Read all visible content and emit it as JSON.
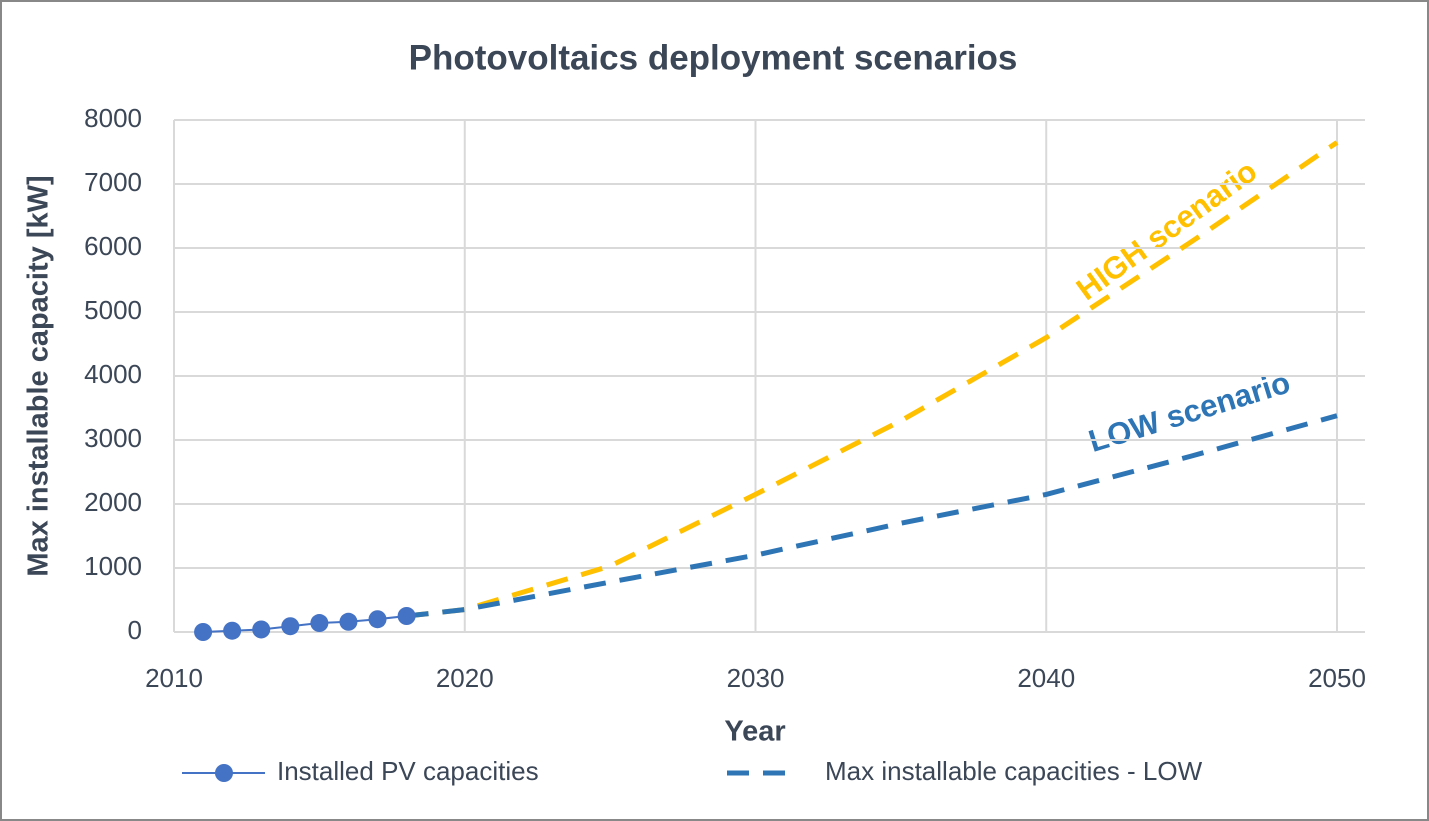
{
  "chart_data": {
    "type": "line",
    "title": "Photovoltaics deployment scenarios",
    "xlabel": "Year",
    "ylabel": "Max installable capacity [kW]",
    "xlim": [
      2010,
      2050
    ],
    "xticks": [
      2010,
      2020,
      2030,
      2040,
      2050
    ],
    "ylim": [
      0,
      8000
    ],
    "yticks": [
      0,
      1000,
      2000,
      3000,
      4000,
      5000,
      6000,
      7000,
      8000
    ],
    "grid": true,
    "series": [
      {
        "name": "Installed PV capacities",
        "color": "#4472c4",
        "style": "solid-markers",
        "x": [
          2011,
          2012,
          2013,
          2014,
          2015,
          2016,
          2017,
          2018
        ],
        "values": [
          0,
          20,
          40,
          90,
          140,
          160,
          200,
          250
        ]
      },
      {
        "name": "Max installable capacities - LOW",
        "color": "#2e75b6",
        "style": "dashed",
        "x": [
          2018,
          2020,
          2025,
          2030,
          2035,
          2040,
          2045,
          2050
        ],
        "values": [
          250,
          350,
          780,
          1200,
          1700,
          2150,
          2750,
          3380
        ]
      },
      {
        "color": "#ffc000",
        "style": "dashed",
        "x": [
          2018,
          2020,
          2025,
          2030,
          2035,
          2040,
          2045,
          2050
        ],
        "values": [
          250,
          350,
          1030,
          2150,
          3300,
          4600,
          6100,
          7650
        ]
      }
    ],
    "annotations": [
      "HIGH scenario",
      "LOW scenario"
    ]
  }
}
